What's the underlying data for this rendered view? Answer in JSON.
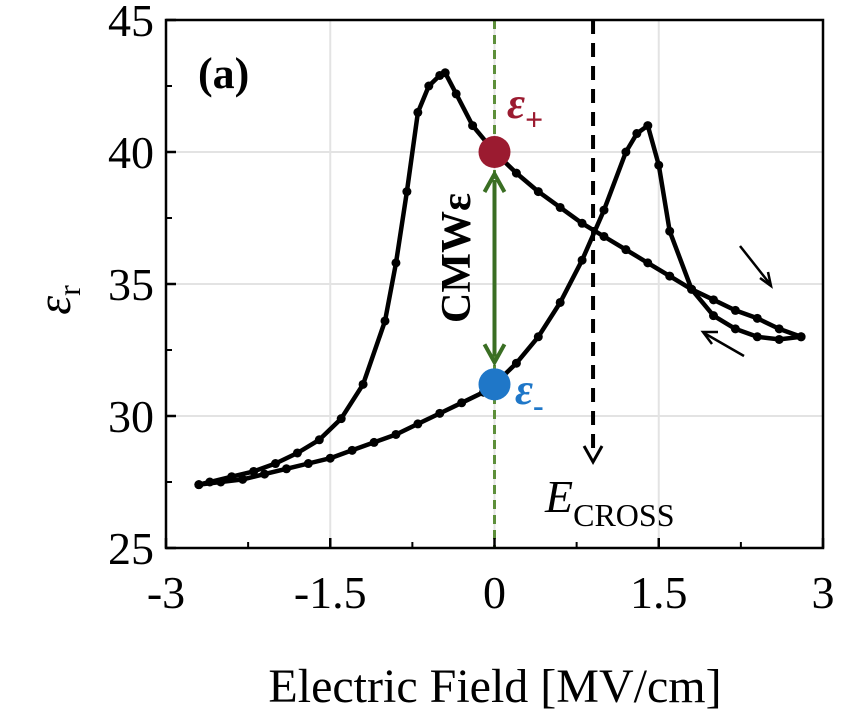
{
  "chart_data": {
    "type": "line",
    "panel_label": "(a)",
    "xlabel": "Electric Field [MV/cm]",
    "ylabel_symbol": "ε",
    "ylabel_sub": "r",
    "xlim": [
      -3,
      3
    ],
    "ylim": [
      25,
      45
    ],
    "x_ticks": [
      -3,
      -1.5,
      0,
      1.5,
      3
    ],
    "x_tick_labels": [
      "-3",
      "-1.5",
      "0",
      "1.5",
      "3"
    ],
    "y_ticks": [
      25,
      30,
      35,
      40,
      45
    ],
    "y_tick_labels": [
      "25",
      "30",
      "35",
      "40",
      "45"
    ],
    "grid": true,
    "series": [
      {
        "branch": "down-sweep",
        "color": "#000000",
        "x": [
          2.8,
          2.6,
          2.4,
          2.2,
          2.0,
          1.8,
          1.6,
          1.4,
          1.2,
          1.0,
          0.8,
          0.6,
          0.4,
          0.2,
          0.0,
          -0.2,
          -0.35,
          -0.45,
          -0.5,
          -0.6,
          -0.7,
          -0.8,
          -0.9,
          -1.0,
          -1.2,
          -1.4,
          -1.6,
          -1.8,
          -2.0,
          -2.2,
          -2.4,
          -2.6,
          -2.7
        ],
        "y": [
          33.0,
          33.3,
          33.7,
          34.0,
          34.4,
          34.8,
          35.3,
          35.8,
          36.3,
          36.8,
          37.3,
          37.9,
          38.5,
          39.2,
          40.0,
          41.0,
          42.2,
          43.0,
          42.9,
          42.5,
          41.5,
          38.5,
          35.8,
          33.6,
          31.2,
          29.9,
          29.1,
          28.6,
          28.2,
          27.9,
          27.7,
          27.5,
          27.4
        ]
      },
      {
        "branch": "up-sweep",
        "color": "#000000",
        "x": [
          -2.7,
          -2.5,
          -2.3,
          -2.1,
          -1.9,
          -1.7,
          -1.5,
          -1.3,
          -1.1,
          -0.9,
          -0.7,
          -0.5,
          -0.3,
          -0.1,
          0.0,
          0.2,
          0.4,
          0.6,
          0.8,
          1.0,
          1.2,
          1.3,
          1.4,
          1.5,
          1.6,
          1.8,
          2.0,
          2.2,
          2.4,
          2.6,
          2.8
        ],
        "y": [
          27.4,
          27.5,
          27.6,
          27.8,
          28.0,
          28.2,
          28.4,
          28.7,
          29.0,
          29.3,
          29.7,
          30.1,
          30.5,
          30.9,
          31.2,
          32.0,
          33.0,
          34.3,
          35.9,
          37.8,
          40.0,
          40.7,
          41.0,
          39.5,
          37.0,
          34.8,
          33.8,
          33.3,
          33.0,
          32.9,
          33.0
        ]
      }
    ],
    "annotations": {
      "eps_plus": {
        "symbol": "ε",
        "subscript": "+",
        "x": 0.0,
        "y": 40.0,
        "color": "#9b1b30"
      },
      "eps_minus": {
        "symbol": "ε",
        "subscript": "-",
        "x": 0.0,
        "y": 31.2,
        "color": "#1f77c8"
      },
      "cmw_label": "CMWε",
      "cmw_color": "#3a6e23",
      "zero_line": {
        "x": 0.0,
        "color": "#5d8f3a"
      },
      "e_cross": {
        "symbol": "E",
        "subscript": "CROSS",
        "x": 0.9
      }
    }
  }
}
